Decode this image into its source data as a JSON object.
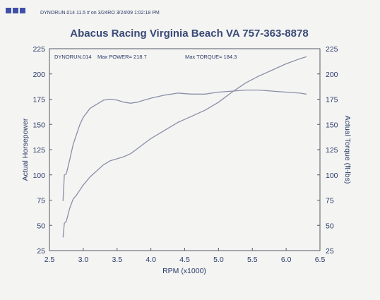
{
  "header": {
    "file_line": "DYNORUN.014   11.5 # on 3/24RO  3/24/09 1:02:18 PM"
  },
  "chart_data": {
    "type": "line",
    "title": "Abacus Racing  Virginia Beach VA 757-363-8878",
    "xlabel": "RPM (x1000)",
    "ylabel_left": "Actual Horsepower",
    "ylabel_right": "Actual Torque (ft-lbs)",
    "xlim": [
      2.5,
      6.5
    ],
    "ylim_left": [
      25,
      225
    ],
    "ylim_right": [
      25,
      225
    ],
    "x_ticks": [
      "2.5",
      "3.0",
      "3.5",
      "4.0",
      "4.5",
      "5.0",
      "5.5",
      "6.0",
      "6.5"
    ],
    "y_ticks_left": [
      "225",
      "200",
      "175",
      "150",
      "125",
      "100",
      "75",
      "50",
      "25"
    ],
    "y_ticks_right": [
      "225",
      "200",
      "175",
      "150",
      "125",
      "100",
      "75",
      "50",
      "25"
    ],
    "grid": false,
    "annotations": {
      "run": "DYNORUN.014",
      "max_power": "Max POWER= 218.7",
      "max_torque": "Max TORQUE= 184.3"
    },
    "series": [
      {
        "color": "#8a8fa8",
        "axis": "left",
        "x": [
          2.7,
          2.72,
          2.75,
          2.8,
          2.85,
          2.9,
          2.95,
          3.0,
          3.1,
          3.2,
          3.3,
          3.4,
          3.5,
          3.6,
          3.7,
          3.8,
          3.9,
          4.0,
          4.2,
          4.4,
          4.6,
          4.8,
          5.0,
          5.2,
          5.4,
          5.6,
          5.8,
          6.0,
          6.2,
          6.3
        ],
        "y": [
          38,
          52,
          54,
          67,
          76,
          80,
          85,
          90,
          98,
          104,
          110,
          114,
          116,
          118,
          121,
          126,
          131,
          136,
          144,
          152,
          158,
          164,
          172,
          182,
          191,
          198,
          204,
          210,
          215,
          217
        ]
      },
      {
        "color": "#8a8fa8",
        "axis": "right",
        "x": [
          2.7,
          2.72,
          2.75,
          2.8,
          2.85,
          2.9,
          2.95,
          3.0,
          3.1,
          3.2,
          3.3,
          3.4,
          3.5,
          3.6,
          3.7,
          3.8,
          3.9,
          4.0,
          4.2,
          4.4,
          4.6,
          4.8,
          5.0,
          5.2,
          5.4,
          5.6,
          5.8,
          6.0,
          6.2,
          6.3
        ],
        "y": [
          74,
          100,
          101,
          115,
          130,
          140,
          150,
          157,
          166,
          170,
          174,
          175,
          174,
          172,
          171,
          172,
          174,
          176,
          179,
          181,
          180,
          180,
          182,
          183,
          184,
          184,
          183,
          182,
          181,
          180
        ]
      }
    ]
  }
}
